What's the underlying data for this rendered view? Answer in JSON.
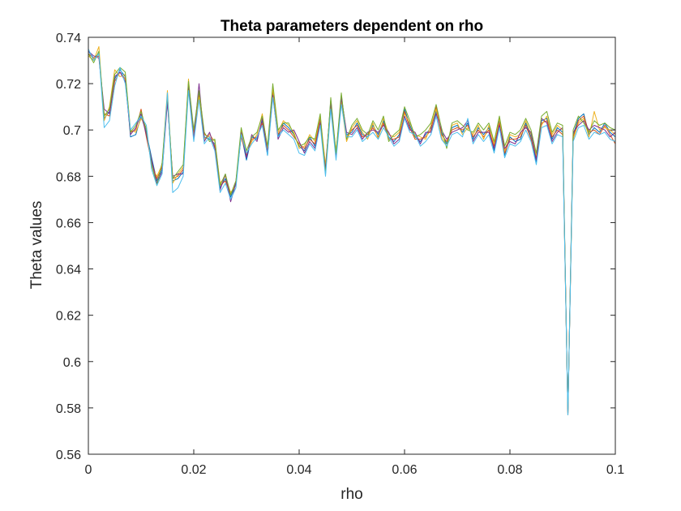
{
  "chart_data": {
    "type": "line",
    "title": "Theta parameters dependent on rho",
    "xlabel": "rho",
    "ylabel": "Theta values",
    "xlim": [
      0,
      0.1
    ],
    "ylim": [
      0.56,
      0.74
    ],
    "x_ticks": [
      0,
      0.02,
      0.04,
      0.06,
      0.08,
      0.1
    ],
    "x_tick_labels": [
      "0",
      "0.02",
      "0.04",
      "0.06",
      "0.08",
      "0.1"
    ],
    "y_ticks": [
      0.56,
      0.58,
      0.6,
      0.62,
      0.64,
      0.66,
      0.68,
      0.7,
      0.72,
      0.74
    ],
    "y_tick_labels": [
      "0.56",
      "0.58",
      "0.6",
      "0.62",
      "0.64",
      "0.66",
      "0.68",
      "0.7",
      "0.72",
      "0.74"
    ],
    "grid": false,
    "legend": "none",
    "x": [
      0,
      0.001,
      0.002,
      0.003,
      0.004,
      0.005,
      0.006,
      0.007,
      0.008,
      0.009,
      0.01,
      0.011,
      0.012,
      0.013,
      0.014,
      0.015,
      0.016,
      0.017,
      0.018,
      0.019,
      0.02,
      0.021,
      0.022,
      0.023,
      0.024,
      0.025,
      0.026,
      0.027,
      0.028,
      0.029,
      0.03,
      0.031,
      0.032,
      0.033,
      0.034,
      0.035,
      0.036,
      0.037,
      0.038,
      0.039,
      0.04,
      0.041,
      0.042,
      0.043,
      0.044,
      0.045,
      0.046,
      0.047,
      0.048,
      0.049,
      0.05,
      0.051,
      0.052,
      0.053,
      0.054,
      0.055,
      0.056,
      0.057,
      0.058,
      0.059,
      0.06,
      0.061,
      0.062,
      0.063,
      0.064,
      0.065,
      0.066,
      0.067,
      0.068,
      0.069,
      0.07,
      0.071,
      0.072,
      0.073,
      0.074,
      0.075,
      0.076,
      0.077,
      0.078,
      0.079,
      0.08,
      0.081,
      0.082,
      0.083,
      0.084,
      0.085,
      0.086,
      0.087,
      0.088,
      0.089,
      0.09,
      0.091,
      0.092,
      0.093,
      0.094,
      0.095,
      0.096,
      0.097,
      0.098,
      0.099,
      0.1
    ],
    "series": [
      {
        "color": "#0072BD",
        "values": [
          0.734,
          0.731,
          0.733,
          0.705,
          0.708,
          0.722,
          0.726,
          0.723,
          0.697,
          0.698,
          0.706,
          0.699,
          0.688,
          0.678,
          0.683,
          0.714,
          0.678,
          0.679,
          0.682,
          0.719,
          0.698,
          0.716,
          0.697,
          0.696,
          0.694,
          0.675,
          0.679,
          0.671,
          0.677,
          0.698,
          0.687,
          0.697,
          0.696,
          0.704,
          0.689,
          0.717,
          0.697,
          0.703,
          0.701,
          0.698,
          0.693,
          0.691,
          0.697,
          0.693,
          0.705,
          0.682,
          0.713,
          0.689,
          0.715,
          0.698,
          0.699,
          0.703,
          0.698,
          0.697,
          0.702,
          0.698,
          0.704,
          0.697,
          0.695,
          0.698,
          0.709,
          0.702,
          0.697,
          0.695,
          0.698,
          0.701,
          0.708,
          0.699,
          0.694,
          0.701,
          0.702,
          0.699,
          0.703,
          0.696,
          0.701,
          0.698,
          0.701,
          0.691,
          0.704,
          0.689,
          0.697,
          0.695,
          0.696,
          0.703,
          0.697,
          0.686,
          0.704,
          0.705,
          0.696,
          0.701,
          0.699,
          0.577,
          0.698,
          0.705,
          0.707,
          0.698,
          0.701,
          0.699,
          0.703,
          0.699,
          0.697
        ]
      },
      {
        "color": "#D95319",
        "values": [
          0.733,
          0.731,
          0.732,
          0.707,
          0.706,
          0.721,
          0.725,
          0.722,
          0.699,
          0.7,
          0.709,
          0.697,
          0.686,
          0.679,
          0.684,
          0.713,
          0.679,
          0.68,
          0.683,
          0.718,
          0.699,
          0.715,
          0.698,
          0.697,
          0.693,
          0.676,
          0.678,
          0.672,
          0.678,
          0.697,
          0.689,
          0.696,
          0.697,
          0.703,
          0.691,
          0.716,
          0.698,
          0.702,
          0.7,
          0.697,
          0.694,
          0.692,
          0.696,
          0.694,
          0.704,
          0.684,
          0.711,
          0.69,
          0.713,
          0.697,
          0.7,
          0.702,
          0.697,
          0.698,
          0.701,
          0.697,
          0.703,
          0.696,
          0.696,
          0.697,
          0.708,
          0.701,
          0.696,
          0.696,
          0.697,
          0.7,
          0.71,
          0.698,
          0.695,
          0.7,
          0.701,
          0.7,
          0.702,
          0.697,
          0.7,
          0.697,
          0.7,
          0.693,
          0.703,
          0.69,
          0.696,
          0.696,
          0.697,
          0.702,
          0.696,
          0.688,
          0.703,
          0.704,
          0.697,
          0.7,
          0.698,
          0.577,
          0.697,
          0.704,
          0.706,
          0.699,
          0.7,
          0.698,
          0.702,
          0.698,
          0.694
        ]
      },
      {
        "color": "#EDB120",
        "values": [
          0.732,
          0.73,
          0.736,
          0.704,
          0.71,
          0.726,
          0.723,
          0.724,
          0.7,
          0.699,
          0.705,
          0.701,
          0.684,
          0.68,
          0.685,
          0.717,
          0.677,
          0.681,
          0.684,
          0.722,
          0.697,
          0.714,
          0.696,
          0.698,
          0.695,
          0.677,
          0.68,
          0.673,
          0.676,
          0.7,
          0.69,
          0.695,
          0.698,
          0.707,
          0.692,
          0.718,
          0.699,
          0.704,
          0.702,
          0.699,
          0.692,
          0.693,
          0.698,
          0.695,
          0.706,
          0.685,
          0.71,
          0.691,
          0.712,
          0.695,
          0.701,
          0.704,
          0.699,
          0.696,
          0.703,
          0.696,
          0.705,
          0.698,
          0.697,
          0.699,
          0.707,
          0.703,
          0.698,
          0.697,
          0.696,
          0.702,
          0.709,
          0.697,
          0.693,
          0.702,
          0.703,
          0.698,
          0.701,
          0.698,
          0.702,
          0.696,
          0.702,
          0.694,
          0.705,
          0.691,
          0.698,
          0.697,
          0.698,
          0.704,
          0.698,
          0.689,
          0.702,
          0.706,
          0.698,
          0.702,
          0.7,
          0.577,
          0.696,
          0.703,
          0.705,
          0.697,
          0.708,
          0.7,
          0.701,
          0.7,
          0.698
        ]
      },
      {
        "color": "#7E2F8E",
        "values": [
          0.734,
          0.732,
          0.731,
          0.709,
          0.707,
          0.723,
          0.725,
          0.721,
          0.698,
          0.701,
          0.707,
          0.698,
          0.687,
          0.677,
          0.682,
          0.712,
          0.68,
          0.681,
          0.681,
          0.72,
          0.696,
          0.72,
          0.695,
          0.699,
          0.692,
          0.674,
          0.681,
          0.669,
          0.677,
          0.699,
          0.688,
          0.698,
          0.695,
          0.705,
          0.69,
          0.715,
          0.696,
          0.701,
          0.699,
          0.7,
          0.695,
          0.69,
          0.695,
          0.692,
          0.703,
          0.683,
          0.712,
          0.688,
          0.714,
          0.699,
          0.698,
          0.701,
          0.696,
          0.699,
          0.7,
          0.699,
          0.702,
          0.699,
          0.694,
          0.696,
          0.706,
          0.7,
          0.699,
          0.694,
          0.699,
          0.699,
          0.707,
          0.7,
          0.696,
          0.699,
          0.7,
          0.701,
          0.704,
          0.695,
          0.699,
          0.699,
          0.699,
          0.692,
          0.702,
          0.692,
          0.695,
          0.694,
          0.699,
          0.701,
          0.699,
          0.687,
          0.705,
          0.703,
          0.695,
          0.699,
          0.701,
          0.577,
          0.699,
          0.702,
          0.704,
          0.7,
          0.702,
          0.701,
          0.7,
          0.697,
          0.699
        ]
      },
      {
        "color": "#77AC30",
        "values": [
          0.733,
          0.729,
          0.734,
          0.706,
          0.709,
          0.724,
          0.727,
          0.725,
          0.699,
          0.702,
          0.708,
          0.7,
          0.685,
          0.676,
          0.686,
          0.715,
          0.679,
          0.682,
          0.685,
          0.721,
          0.7,
          0.717,
          0.699,
          0.695,
          0.696,
          0.676,
          0.681,
          0.672,
          0.678,
          0.701,
          0.691,
          0.697,
          0.699,
          0.706,
          0.693,
          0.72,
          0.7,
          0.703,
          0.703,
          0.698,
          0.693,
          0.694,
          0.697,
          0.696,
          0.707,
          0.681,
          0.714,
          0.69,
          0.716,
          0.696,
          0.702,
          0.705,
          0.7,
          0.698,
          0.704,
          0.7,
          0.706,
          0.695,
          0.698,
          0.7,
          0.71,
          0.704,
          0.697,
          0.698,
          0.7,
          0.703,
          0.711,
          0.701,
          0.692,
          0.703,
          0.704,
          0.702,
          0.7,
          0.699,
          0.703,
          0.7,
          0.703,
          0.695,
          0.706,
          0.693,
          0.699,
          0.698,
          0.7,
          0.705,
          0.7,
          0.69,
          0.706,
          0.708,
          0.699,
          0.703,
          0.702,
          0.577,
          0.7,
          0.706,
          0.703,
          0.699,
          0.704,
          0.702,
          0.703,
          0.701,
          0.7
        ]
      },
      {
        "color": "#4DBEEE",
        "values": [
          0.735,
          0.73,
          0.733,
          0.701,
          0.704,
          0.719,
          0.727,
          0.72,
          0.7,
          0.703,
          0.706,
          0.702,
          0.683,
          0.676,
          0.681,
          0.716,
          0.673,
          0.675,
          0.68,
          0.717,
          0.695,
          0.713,
          0.694,
          0.697,
          0.691,
          0.673,
          0.677,
          0.67,
          0.675,
          0.698,
          0.69,
          0.694,
          0.697,
          0.702,
          0.689,
          0.714,
          0.697,
          0.7,
          0.698,
          0.696,
          0.69,
          0.689,
          0.694,
          0.691,
          0.702,
          0.68,
          0.709,
          0.687,
          0.711,
          0.697,
          0.697,
          0.7,
          0.695,
          0.697,
          0.699,
          0.696,
          0.701,
          0.697,
          0.693,
          0.695,
          0.705,
          0.699,
          0.698,
          0.693,
          0.695,
          0.698,
          0.706,
          0.696,
          0.693,
          0.698,
          0.699,
          0.697,
          0.705,
          0.694,
          0.698,
          0.695,
          0.698,
          0.69,
          0.701,
          0.688,
          0.694,
          0.693,
          0.695,
          0.7,
          0.695,
          0.685,
          0.701,
          0.702,
          0.694,
          0.698,
          0.697,
          0.577,
          0.695,
          0.701,
          0.702,
          0.696,
          0.699,
          0.698,
          0.699,
          0.696,
          0.695
        ]
      }
    ]
  }
}
